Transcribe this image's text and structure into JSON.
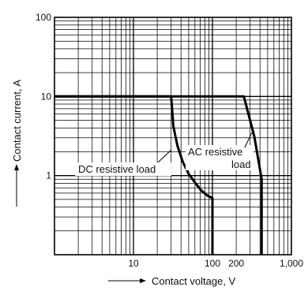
{
  "chart_data": {
    "type": "line",
    "title": "",
    "xlabel": "Contact voltage, V",
    "ylabel": "Contact current, A",
    "x_scale": "log",
    "y_scale": "log",
    "xlim": [
      1,
      1000
    ],
    "ylim": [
      0.1,
      100
    ],
    "x_tick_labels": [
      {
        "value": 10,
        "label": "10"
      },
      {
        "value": 100,
        "label": "100"
      },
      {
        "value": 200,
        "label": "200"
      },
      {
        "value": 1000,
        "label": "1,000"
      }
    ],
    "y_tick_labels": [
      {
        "value": 1,
        "label": "1"
      },
      {
        "value": 10,
        "label": "10"
      },
      {
        "value": 100,
        "label": "100"
      }
    ],
    "grid": true,
    "series": [
      {
        "name": "DC resistive load",
        "x": [
          1,
          30,
          32,
          36,
          42,
          50,
          60,
          72,
          86,
          100,
          100
        ],
        "y": [
          10,
          10,
          4.2,
          2.4,
          1.5,
          1.05,
          0.82,
          0.65,
          0.56,
          0.52,
          0.1
        ]
      },
      {
        "name": "AC resistive load",
        "x": [
          1,
          250,
          340,
          420,
          420
        ],
        "y": [
          10,
          10,
          3.1,
          0.9,
          0.1
        ]
      }
    ],
    "annotations": [
      {
        "text": "DC resistive load",
        "points_to": "DC resistive load"
      },
      {
        "text": "AC resistive",
        "points_to": "AC resistive load"
      },
      {
        "text": "load",
        "points_to": "AC resistive load"
      }
    ]
  }
}
